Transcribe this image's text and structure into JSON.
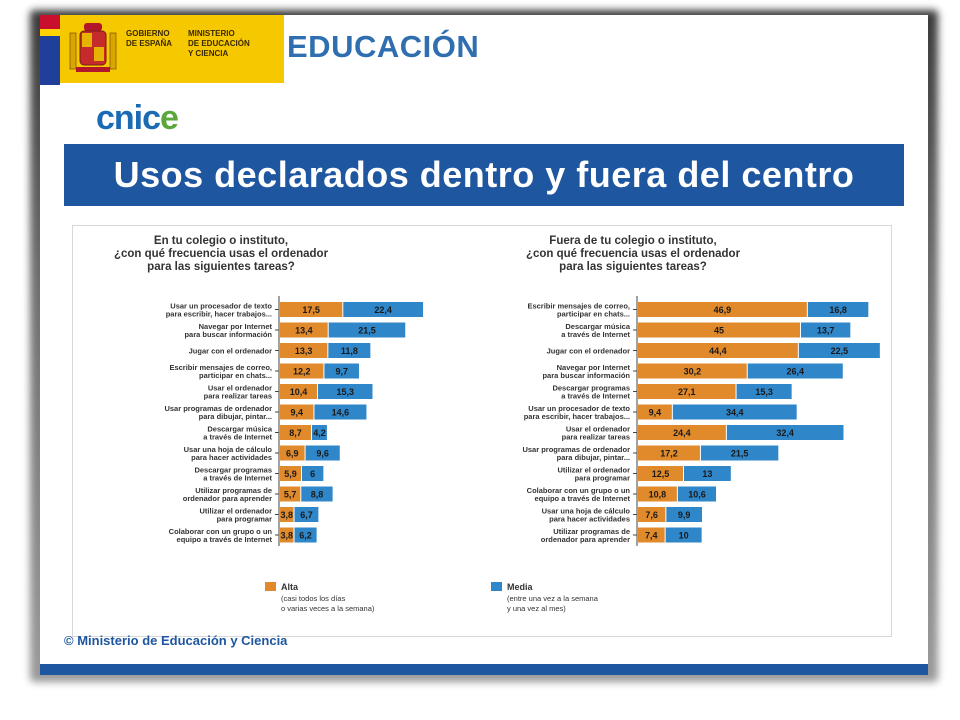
{
  "header": {
    "gov_line1": "GOBIERNO",
    "gov_line2": "DE ESPAÑA",
    "min_line1": "MINISTERIO",
    "min_line2": "DE EDUCACIÓN",
    "min_line3": "Y CIENCIA",
    "educacion": "EDUCACIÓN",
    "cnice_a": "cnic",
    "cnice_b": "e"
  },
  "title": "Usos declarados dentro y fuera del centro",
  "copyright": "© Ministerio de Educación y Ciencia",
  "colors": {
    "alta": "#e08a2c",
    "media": "#2f86c8",
    "band": "#1e56a0"
  },
  "chart_data": [
    {
      "type": "bar",
      "orientation": "horizontal-stacked",
      "title": [
        "En tu colegio o instituto,",
        "¿con qué frecuencia usas el ordenador",
        "para las siguientes tareas?"
      ],
      "categories": [
        [
          "Usar un procesador de texto",
          "para escribir, hacer trabajos..."
        ],
        [
          "Navegar por Internet",
          "para buscar información"
        ],
        [
          "Jugar con el ordenador"
        ],
        [
          "Escribir mensajes de correo,",
          "participar en chats..."
        ],
        [
          "Usar el ordenador",
          "para realizar tareas"
        ],
        [
          "Usar programas de ordenador",
          "para dibujar, pintar..."
        ],
        [
          "Descargar música",
          "a través de Internet"
        ],
        [
          "Usar una hoja de cálculo",
          "para hacer actividades"
        ],
        [
          "Descargar programas",
          "a través de Internet"
        ],
        [
          "Utilizar programas de",
          "ordenador para aprender"
        ],
        [
          "Utilizar el ordenador",
          "para programar"
        ],
        [
          "Colaborar con un grupo o un",
          "equipo a través de Internet"
        ]
      ],
      "series": [
        {
          "name": "Alta",
          "values": [
            17.5,
            13.4,
            13.3,
            12.2,
            10.4,
            9.4,
            8.7,
            6.9,
            5.9,
            5.7,
            3.8,
            3.8
          ]
        },
        {
          "name": "Media",
          "values": [
            22.4,
            21.5,
            11.8,
            9.7,
            15.3,
            14.6,
            4.2,
            9.6,
            6,
            8.8,
            6.7,
            6.2
          ]
        }
      ],
      "labels": [
        [
          "17,5",
          "22,4"
        ],
        [
          "13,4",
          "21,5"
        ],
        [
          "13,3",
          "11,8"
        ],
        [
          "12,2",
          "9,7"
        ],
        [
          "10,4",
          "15,3"
        ],
        [
          "9,4",
          "14,6"
        ],
        [
          "8,7",
          "4,2"
        ],
        [
          "6,9",
          "9,6"
        ],
        [
          "5,9",
          "6"
        ],
        [
          "5,7",
          "8,8"
        ],
        [
          "3,8",
          "6,7"
        ],
        [
          "3,8",
          "6,2"
        ]
      ]
    },
    {
      "type": "bar",
      "orientation": "horizontal-stacked",
      "title": [
        "Fuera de tu colegio o instituto,",
        "¿con qué frecuencia usas el ordenador",
        "para las siguientes tareas?"
      ],
      "categories": [
        [
          "Escribir mensajes de correo,",
          "participar en chats..."
        ],
        [
          "Descargar música",
          "a través de Internet"
        ],
        [
          "Jugar con el ordenador"
        ],
        [
          "Navegar por Internet",
          "para buscar información"
        ],
        [
          "Descargar programas",
          "a través de Internet"
        ],
        [
          "Usar un procesador de texto",
          "para escribir, hacer trabajos..."
        ],
        [
          "Usar el ordenador",
          "para realizar tareas"
        ],
        [
          "Usar programas de ordenador",
          "para dibujar, pintar..."
        ],
        [
          "Utilizar el ordenador",
          "para programar"
        ],
        [
          "Colaborar con un grupo o un",
          "equipo a través de Internet"
        ],
        [
          "Usar una hoja de cálculo",
          "para hacer actividades"
        ],
        [
          "Utilizar programas de",
          "ordenador para aprender"
        ]
      ],
      "series": [
        {
          "name": "Alta",
          "values": [
            46.9,
            45,
            44.4,
            30.2,
            27.1,
            9.4,
            24.4,
            17.2,
            12.5,
            10.8,
            7.6,
            7.4
          ]
        },
        {
          "name": "Media",
          "values": [
            16.8,
            13.7,
            22.5,
            26.4,
            15.3,
            34.4,
            32.4,
            21.5,
            13,
            10.6,
            9.9,
            10
          ]
        }
      ],
      "labels": [
        [
          "46,9",
          "16,8"
        ],
        [
          "45",
          "13,7"
        ],
        [
          "44,4",
          "22,5"
        ],
        [
          "30,2",
          "26,4"
        ],
        [
          "27,1",
          "15,3"
        ],
        [
          "9,4",
          "34,4"
        ],
        [
          "24,4",
          "32,4"
        ],
        [
          "17,2",
          "21,5"
        ],
        [
          "12,5",
          "13"
        ],
        [
          "10,8",
          "10,6"
        ],
        [
          "7,6",
          "9,9"
        ],
        [
          "7,4",
          "10"
        ]
      ]
    }
  ],
  "legend": [
    {
      "name": "Alta",
      "desc1": "(casi todos los días",
      "desc2": "o varias veces a la semana)"
    },
    {
      "name": "Media",
      "desc1": "(entre una vez a la semana",
      "desc2": "y una vez al mes)"
    }
  ]
}
